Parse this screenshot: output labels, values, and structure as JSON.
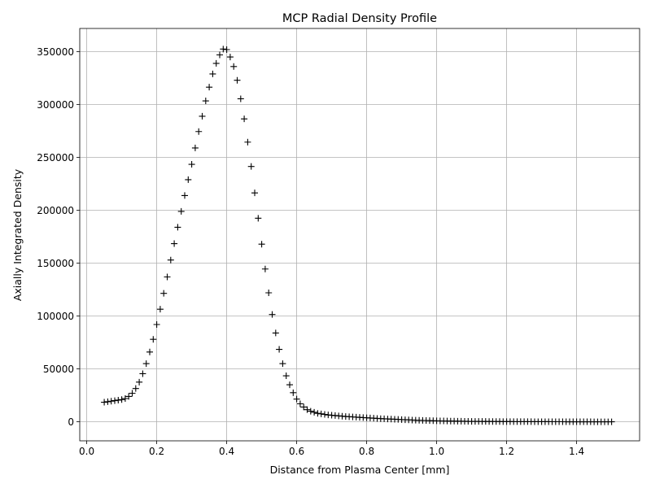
{
  "chart_data": {
    "type": "scatter",
    "title": "MCP Radial Density Profile",
    "xlabel": "Distance from Plasma Center [mm]",
    "ylabel": "Axially Integrated Density",
    "xlim": [
      -0.02,
      1.58
    ],
    "ylim": [
      -18000,
      372000
    ],
    "xticks": [
      0.0,
      0.2,
      0.4,
      0.6,
      0.8,
      1.0,
      1.2,
      1.4
    ],
    "xtick_labels": [
      "0.0",
      "0.2",
      "0.4",
      "0.6",
      "0.8",
      "1.0",
      "1.2",
      "1.4"
    ],
    "yticks": [
      0,
      50000,
      100000,
      150000,
      200000,
      250000,
      300000,
      350000
    ],
    "ytick_labels": [
      "0",
      "50000",
      "100000",
      "150000",
      "200000",
      "250000",
      "300000",
      "350000"
    ],
    "grid": true,
    "marker": "+",
    "color": "#000000",
    "series": [
      {
        "x": [
          0.05,
          0.06,
          0.07,
          0.08,
          0.09,
          0.1,
          0.11,
          0.12,
          0.13,
          0.14,
          0.15,
          0.16,
          0.17,
          0.18,
          0.19,
          0.2,
          0.21,
          0.22,
          0.23,
          0.24,
          0.25,
          0.26,
          0.27,
          0.28,
          0.29,
          0.3,
          0.31,
          0.32,
          0.33,
          0.34,
          0.35,
          0.36,
          0.37,
          0.38,
          0.39,
          0.4,
          0.41,
          0.42,
          0.43,
          0.44,
          0.45,
          0.46,
          0.47,
          0.48,
          0.49,
          0.5,
          0.51,
          0.52,
          0.53,
          0.54,
          0.55,
          0.56,
          0.57,
          0.58,
          0.59,
          0.6,
          0.61,
          0.62,
          0.63,
          0.64,
          0.65,
          0.66,
          0.67,
          0.68,
          0.69,
          0.7,
          0.71,
          0.72,
          0.73,
          0.74,
          0.75,
          0.76,
          0.77,
          0.78,
          0.79,
          0.8,
          0.81,
          0.82,
          0.83,
          0.84,
          0.85,
          0.86,
          0.87,
          0.88,
          0.89,
          0.9,
          0.91,
          0.92,
          0.93,
          0.94,
          0.95,
          0.96,
          0.97,
          0.98,
          0.99,
          1.0,
          1.01,
          1.02,
          1.03,
          1.04,
          1.05,
          1.06,
          1.07,
          1.08,
          1.09,
          1.1,
          1.11,
          1.12,
          1.13,
          1.14,
          1.15,
          1.16,
          1.17,
          1.18,
          1.19,
          1.2,
          1.21,
          1.22,
          1.23,
          1.24,
          1.25,
          1.26,
          1.27,
          1.28,
          1.29,
          1.3,
          1.31,
          1.32,
          1.33,
          1.34,
          1.35,
          1.36,
          1.37,
          1.38,
          1.39,
          1.4,
          1.41,
          1.42,
          1.43,
          1.44,
          1.45,
          1.46,
          1.47,
          1.48,
          1.49,
          1.5
        ],
        "y": [
          18500,
          19000,
          19500,
          20000,
          20500,
          21000,
          22000,
          24000,
          27000,
          31500,
          37500,
          45500,
          55000,
          66000,
          78000,
          92000,
          106500,
          121500,
          137000,
          153000,
          168500,
          184000,
          199000,
          214000,
          229000,
          243500,
          259000,
          274500,
          289000,
          303500,
          316500,
          329000,
          339000,
          347000,
          352500,
          352000,
          345000,
          336000,
          323000,
          305500,
          286500,
          264500,
          241500,
          216500,
          192500,
          168000,
          144500,
          122000,
          101500,
          84000,
          68500,
          55000,
          43500,
          35000,
          27500,
          21500,
          17000,
          14000,
          11500,
          10000,
          9000,
          8000,
          7500,
          7000,
          6500,
          6200,
          5900,
          5600,
          5300,
          5000,
          4800,
          4600,
          4400,
          4200,
          4000,
          3800,
          3600,
          3400,
          3200,
          3000,
          2850,
          2700,
          2550,
          2400,
          2250,
          2100,
          1950,
          1800,
          1650,
          1500,
          1400,
          1300,
          1200,
          1100,
          1000,
          900,
          850,
          800,
          750,
          700,
          650,
          600,
          550,
          500,
          450,
          400,
          380,
          360,
          340,
          320,
          300,
          280,
          260,
          240,
          220,
          200,
          190,
          180,
          170,
          160,
          150,
          140,
          130,
          120,
          110,
          100,
          95,
          90,
          85,
          80,
          75,
          70,
          65,
          60,
          55,
          50,
          45,
          40,
          35,
          30,
          28,
          26,
          24,
          22,
          20,
          18
        ]
      }
    ]
  }
}
